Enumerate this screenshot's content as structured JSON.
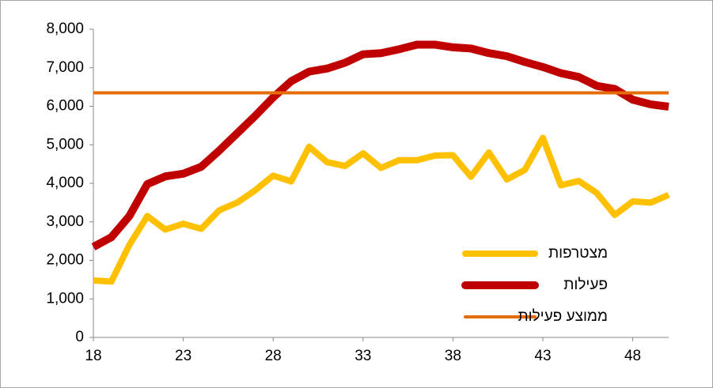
{
  "chart_data": {
    "type": "line",
    "x": [
      18,
      19,
      20,
      21,
      22,
      23,
      24,
      25,
      26,
      27,
      28,
      29,
      30,
      31,
      32,
      33,
      34,
      35,
      36,
      37,
      38,
      39,
      40,
      41,
      42,
      43,
      44,
      45,
      46,
      47,
      48,
      49,
      50
    ],
    "series": [
      {
        "name": "מצטרפות",
        "color": "#ffc000",
        "values": [
          1480,
          1450,
          2400,
          3150,
          2800,
          2950,
          2820,
          3300,
          3500,
          3820,
          4200,
          4050,
          4950,
          4550,
          4450,
          4780,
          4400,
          4600,
          4600,
          4720,
          4730,
          4170,
          4800,
          4100,
          4350,
          5180,
          3950,
          4060,
          3750,
          3180,
          3530,
          3500,
          3700
        ]
      },
      {
        "name": "פעילות",
        "color": "#c00000",
        "values": [
          2350,
          2600,
          3150,
          3980,
          4180,
          4250,
          4430,
          4850,
          5300,
          5750,
          6230,
          6650,
          6900,
          6980,
          7130,
          7350,
          7380,
          7480,
          7600,
          7600,
          7530,
          7500,
          7380,
          7300,
          7150,
          7020,
          6860,
          6760,
          6530,
          6450,
          6170,
          6050,
          5990
        ]
      },
      {
        "name": "ממוצע פעילות",
        "color": "#e46c0a",
        "values": [
          6350,
          6350,
          6350,
          6350,
          6350,
          6350,
          6350,
          6350,
          6350,
          6350,
          6350,
          6350,
          6350,
          6350,
          6350,
          6350,
          6350,
          6350,
          6350,
          6350,
          6350,
          6350,
          6350,
          6350,
          6350,
          6350,
          6350,
          6350,
          6350,
          6350,
          6350,
          6350,
          6350
        ]
      }
    ],
    "xlim": [
      18,
      50
    ],
    "xticks": [
      18,
      23,
      28,
      33,
      38,
      43,
      48
    ],
    "ylim": [
      0,
      8000
    ],
    "yticks": [
      0,
      {
        "value": 1000,
        "label": "1,000"
      },
      {
        "value": 2000,
        "label": "2,000"
      },
      {
        "value": 3000,
        "label": "3,000"
      },
      {
        "value": 4000,
        "label": "4,000"
      },
      {
        "value": 5000,
        "label": "5,000"
      },
      {
        "value": 6000,
        "label": "6,000"
      },
      {
        "value": 7000,
        "label": "7,000"
      },
      {
        "value": 8000,
        "label": "8,000"
      }
    ],
    "grid": false
  }
}
